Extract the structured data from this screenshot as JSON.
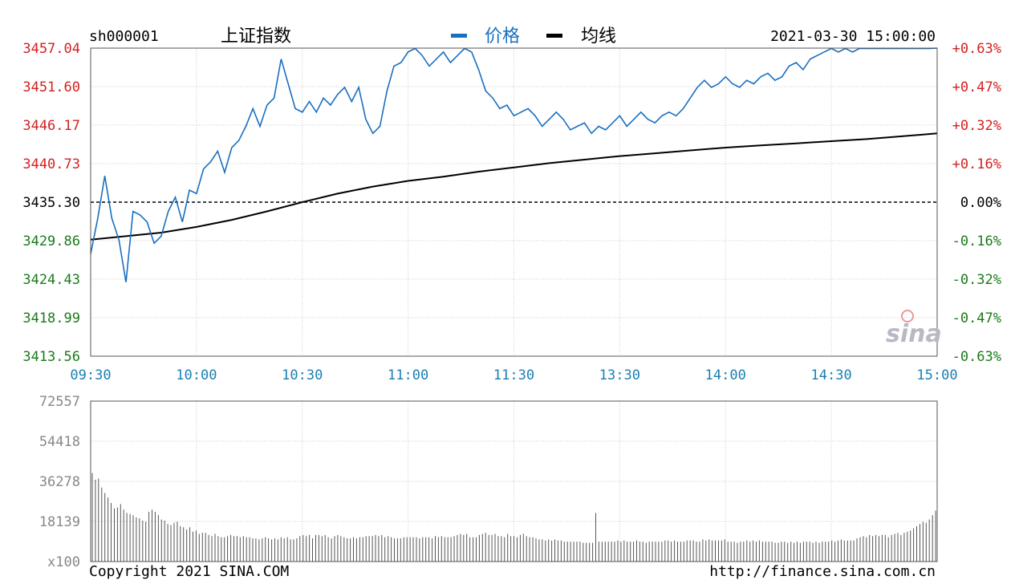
{
  "header": {
    "code": "sh000001",
    "name": "上证指数",
    "legend_price": "价格",
    "legend_avg": "均线",
    "datetime": "2021-03-30 15:00:00"
  },
  "footer": {
    "copyright": "Copyright 2021 SINA.COM",
    "url": "http://finance.sina.com.cn"
  },
  "watermark": "sina",
  "colors": {
    "price_line": "#1a6fbf",
    "avg_line": "#000000",
    "axis_up": "#d42020",
    "axis_down": "#1a7a1a",
    "time_label": "#1a7fb0",
    "grid": "#c8c8c8",
    "volume_bar": "#555555"
  },
  "chart_data": [
    {
      "type": "line",
      "title": "上证指数",
      "x_ticks": [
        "09:30",
        "10:00",
        "10:30",
        "11:00",
        "11:30",
        "13:30",
        "14:00",
        "14:30",
        "15:00"
      ],
      "y_ticks_left": [
        "3457.04",
        "3451.60",
        "3446.17",
        "3440.73",
        "3435.30",
        "3429.86",
        "3424.43",
        "3418.99",
        "3413.56"
      ],
      "y_ticks_right": [
        "+0.63%",
        "+0.47%",
        "+0.32%",
        "+0.16%",
        "0.00%",
        "-0.16%",
        "-0.32%",
        "-0.47%",
        "-0.63%"
      ],
      "ylim": [
        3413.56,
        3457.04
      ],
      "prev_close": 3435.3,
      "grid": true,
      "legend": "top-center",
      "series": [
        {
          "name": "价格",
          "x": [
            "09:30",
            "09:32",
            "09:34",
            "09:36",
            "09:38",
            "09:40",
            "09:42",
            "09:44",
            "09:46",
            "09:48",
            "09:50",
            "09:52",
            "09:54",
            "09:56",
            "09:58",
            "10:00",
            "10:02",
            "10:04",
            "10:06",
            "10:08",
            "10:10",
            "10:12",
            "10:14",
            "10:16",
            "10:18",
            "10:20",
            "10:22",
            "10:24",
            "10:26",
            "10:28",
            "10:30",
            "10:32",
            "10:34",
            "10:36",
            "10:38",
            "10:40",
            "10:42",
            "10:44",
            "10:46",
            "10:48",
            "10:50",
            "10:52",
            "10:54",
            "10:56",
            "10:58",
            "11:00",
            "11:02",
            "11:04",
            "11:06",
            "11:08",
            "11:10",
            "11:12",
            "11:14",
            "11:16",
            "11:18",
            "11:20",
            "11:22",
            "11:24",
            "11:26",
            "11:28",
            "11:30",
            "13:02",
            "13:04",
            "13:06",
            "13:08",
            "13:10",
            "13:12",
            "13:14",
            "13:16",
            "13:18",
            "13:20",
            "13:22",
            "13:24",
            "13:26",
            "13:28",
            "13:30",
            "13:32",
            "13:34",
            "13:36",
            "13:38",
            "13:40",
            "13:42",
            "13:44",
            "13:46",
            "13:48",
            "13:50",
            "13:52",
            "13:54",
            "13:56",
            "13:58",
            "14:00",
            "14:02",
            "14:04",
            "14:06",
            "14:08",
            "14:10",
            "14:12",
            "14:14",
            "14:16",
            "14:18",
            "14:20",
            "14:22",
            "14:24",
            "14:26",
            "14:28",
            "14:30",
            "14:32",
            "14:34",
            "14:36",
            "14:38",
            "14:40",
            "14:42",
            "14:44",
            "14:46",
            "14:48",
            "14:50",
            "14:52",
            "14:54",
            "14:56",
            "14:58",
            "15:00"
          ],
          "values": [
            3428.0,
            3433.0,
            3439.0,
            3433.0,
            3430.0,
            3424.0,
            3434.0,
            3433.5,
            3432.5,
            3429.5,
            3430.5,
            3434.0,
            3436.0,
            3432.5,
            3437.0,
            3436.5,
            3440.0,
            3441.0,
            3442.5,
            3439.5,
            3443.0,
            3444.0,
            3446.0,
            3448.5,
            3446.0,
            3449.0,
            3450.0,
            3455.5,
            3452.0,
            3448.5,
            3448.0,
            3449.5,
            3448.0,
            3450.0,
            3449.0,
            3450.5,
            3451.5,
            3449.5,
            3451.5,
            3447.0,
            3445.0,
            3446.0,
            3451.0,
            3454.5,
            3455.0,
            3456.5,
            3457.0,
            3456.0,
            3454.5,
            3455.5,
            3456.5,
            3455.0,
            3456.0,
            3457.0,
            3456.5,
            3454.0,
            3451.0,
            3450.0,
            3448.5,
            3449.0,
            3447.5,
            3448.0,
            3448.5,
            3447.5,
            3446.0,
            3447.0,
            3448.0,
            3447.0,
            3445.5,
            3446.0,
            3446.5,
            3445.0,
            3446.0,
            3445.5,
            3446.5,
            3447.5,
            3446.0,
            3447.0,
            3448.0,
            3447.0,
            3446.5,
            3447.5,
            3448.0,
            3447.5,
            3448.5,
            3450.0,
            3451.5,
            3452.5,
            3451.5,
            3452.0,
            3453.0,
            3452.0,
            3451.5,
            3452.5,
            3452.0,
            3453.0,
            3453.5,
            3452.5,
            3453.0,
            3454.5,
            3455.0,
            3454.0,
            3455.5,
            3456.0,
            3456.5,
            3457.0,
            3456.5,
            3457.0,
            3456.5,
            3457.0,
            3457.0,
            3457.0,
            3457.0,
            3457.0,
            3457.0,
            3457.0,
            3457.0,
            3457.0,
            3457.0,
            3457.0,
            3457.04
          ]
        },
        {
          "name": "均线",
          "x": [
            "09:30",
            "09:40",
            "09:50",
            "10:00",
            "10:10",
            "10:20",
            "10:30",
            "10:40",
            "10:50",
            "11:00",
            "11:10",
            "11:20",
            "11:30",
            "13:10",
            "13:20",
            "13:30",
            "13:40",
            "13:50",
            "14:00",
            "14:10",
            "14:20",
            "14:30",
            "14:40",
            "14:50",
            "15:00"
          ],
          "values": [
            3430.0,
            3430.5,
            3431.0,
            3431.8,
            3432.8,
            3434.0,
            3435.3,
            3436.5,
            3437.5,
            3438.3,
            3438.9,
            3439.6,
            3440.2,
            3440.8,
            3441.3,
            3441.8,
            3442.2,
            3442.6,
            3443.0,
            3443.3,
            3443.6,
            3443.9,
            3444.2,
            3444.6,
            3445.0
          ]
        }
      ]
    },
    {
      "type": "bar",
      "title": "",
      "y_ticks": [
        "72557",
        "54418",
        "36278",
        "18139",
        "x100"
      ],
      "ylim": [
        0,
        72557
      ],
      "series": [
        {
          "name": "",
          "values": [
            40000,
            37000,
            37500,
            33500,
            31000,
            29000,
            26500,
            24000,
            24500,
            26000,
            23500,
            22000,
            21500,
            21000,
            20000,
            19500,
            18500,
            18000,
            22500,
            23500,
            22500,
            21000,
            19000,
            18500,
            17000,
            16500,
            17500,
            18000,
            16000,
            15500,
            14500,
            15500,
            13500,
            14000,
            12500,
            13000,
            13000,
            12000,
            11500,
            12500,
            11500,
            11000,
            11000,
            11500,
            12000,
            11500,
            11500,
            11000,
            11500,
            11000,
            11000,
            10500,
            10500,
            10000,
            10500,
            11000,
            10500,
            10000,
            10500,
            10000,
            11000,
            10500,
            11000,
            10000,
            10000,
            10500,
            11500,
            12000,
            11500,
            12000,
            10500,
            12000,
            12000,
            11500,
            12000,
            11000,
            10500,
            11500,
            12000,
            11500,
            11000,
            10500,
            10500,
            11000,
            10500,
            11000,
            11000,
            11500,
            11500,
            11500,
            12000,
            11500,
            12000,
            11000,
            11500,
            11000,
            10500,
            10500,
            10500,
            11000,
            11000,
            11000,
            11000,
            11000,
            10500,
            11000,
            11000,
            11000,
            10500,
            11500,
            11000,
            11500,
            11000,
            11000,
            11000,
            11500,
            12000,
            12500,
            12000,
            12500,
            11000,
            11000,
            11000,
            12000,
            12500,
            13000,
            12000,
            12000,
            12500,
            11500,
            11500,
            11000,
            12500,
            11500,
            11500,
            11000,
            12000,
            12500,
            11500,
            11000,
            11000,
            10500,
            10000,
            10000,
            9500,
            10000,
            9500,
            10000,
            9500,
            9500,
            9000,
            9000,
            9000,
            9000,
            9000,
            9000,
            8500,
            8500,
            8500,
            8500,
            22000,
            9000,
            9000,
            9000,
            9000,
            9000,
            9000,
            9500,
            9000,
            9500,
            9000,
            9000,
            9000,
            9500,
            9000,
            9000,
            8500,
            9000,
            9000,
            9000,
            9000,
            9000,
            9500,
            9500,
            9000,
            9500,
            9000,
            9000,
            9000,
            9500,
            9500,
            9500,
            9000,
            9000,
            10000,
            9500,
            10000,
            9500,
            9500,
            9500,
            9500,
            10000,
            9000,
            9000,
            9000,
            8500,
            9000,
            9000,
            9500,
            9000,
            9500,
            9000,
            9500,
            9000,
            9000,
            9000,
            9000,
            8500,
            8500,
            9000,
            9000,
            8500,
            9000,
            8500,
            9000,
            8500,
            9000,
            9000,
            9000,
            8500,
            9000,
            8500,
            9000,
            9000,
            9000,
            9500,
            9000,
            9500,
            10000,
            9500,
            9500,
            9500,
            9500,
            10500,
            11000,
            11500,
            11000,
            12000,
            11500,
            12000,
            11500,
            12000,
            12000,
            11000,
            12000,
            12500,
            13000,
            12000,
            13000,
            13500,
            14000,
            15000,
            16000,
            17000,
            18000,
            17500,
            19000,
            21000,
            23000
          ]
        }
      ]
    }
  ]
}
